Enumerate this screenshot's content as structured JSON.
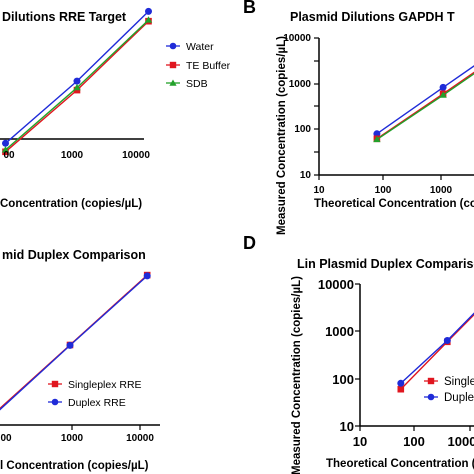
{
  "chart_data": [
    {
      "type": "line",
      "panel_label": "",
      "title": "Dilutions RRE Target",
      "xlabel": "Concentration (copies/µL)",
      "ylabel": "",
      "x_scale": "log",
      "y_scale": "log",
      "xlim": [
        40,
        15000
      ],
      "ylim": [
        10,
        10000
      ],
      "x_ticks": [
        "00",
        "1000",
        "10000"
      ],
      "y_ticks": [],
      "legend": "top-right",
      "series": [
        {
          "name": "Water",
          "color": "#1f2bd8",
          "marker": "circle",
          "x": [
            75,
            750,
            7500
          ],
          "y": [
            80,
            650,
            6800
          ]
        },
        {
          "name": "TE Buffer",
          "color": "#e0161f",
          "marker": "square",
          "x": [
            75,
            750,
            7500
          ],
          "y": [
            60,
            480,
            4900
          ]
        },
        {
          "name": "SDB",
          "color": "#22a12a",
          "marker": "triangle",
          "x": [
            75,
            750,
            7500
          ],
          "y": [
            64,
            520,
            5100
          ]
        }
      ]
    },
    {
      "type": "line",
      "panel_label": "B",
      "title": "Plasmid Dilutions GAPDH T",
      "xlabel": "Theoretical Concentration (copies/µL",
      "ylabel": "Measured Concentration (copies/µL)",
      "x_scale": "log",
      "y_scale": "log",
      "xlim": [
        10,
        2200
      ],
      "ylim": [
        10,
        10000
      ],
      "x_ticks": [
        "10",
        "100",
        "1000"
      ],
      "y_ticks": [
        "10",
        "100",
        "1000",
        "10000"
      ],
      "series": [
        {
          "name": "Water",
          "color": "#1f2bd8",
          "marker": "circle",
          "x": [
            75,
            750,
            7500
          ],
          "y": [
            80,
            830,
            8300
          ]
        },
        {
          "name": "TE Buffer",
          "color": "#e0161f",
          "marker": "square",
          "x": [
            75,
            750,
            7500
          ],
          "y": [
            62,
            600,
            6000
          ]
        },
        {
          "name": "SDB",
          "color": "#22a12a",
          "marker": "triangle",
          "x": [
            75,
            750,
            7500
          ],
          "y": [
            60,
            560,
            5600
          ]
        }
      ]
    },
    {
      "type": "line",
      "panel_label": "",
      "title": "mid Duplex Comparison",
      "xlabel": "l Concentration (copies/µL)",
      "ylabel": "",
      "x_scale": "log",
      "y_scale": "log",
      "xlim": [
        65,
        12000
      ],
      "ylim": [
        40,
        15000
      ],
      "x_ticks": [
        "00",
        "1000",
        "10000"
      ],
      "y_ticks": [],
      "legend": "bottom-right",
      "series": [
        {
          "name": "Singleplex RRE",
          "color": "#e0161f",
          "marker": "square",
          "x": [
            75,
            750,
            7500
          ],
          "y": [
            75,
            750,
            7500
          ]
        },
        {
          "name": "Duplex RRE",
          "color": "#1f2bd8",
          "marker": "circle",
          "x": [
            75,
            750,
            7500
          ],
          "y": [
            72,
            740,
            7300
          ]
        }
      ]
    },
    {
      "type": "line",
      "panel_label": "D",
      "title": "Lin Plasmid Duplex Comparison",
      "xlabel": "Theoretical Concentration (copies",
      "ylabel": "Measured Concentration (copies/µL)",
      "x_scale": "log",
      "y_scale": "log",
      "xlim": [
        10,
        2800
      ],
      "ylim": [
        10,
        10000
      ],
      "x_ticks": [
        "10",
        "100",
        "1000"
      ],
      "y_ticks": [
        "10",
        "100",
        "1000",
        "10000"
      ],
      "legend": "bottom-right",
      "series": [
        {
          "name": "Single",
          "color": "#e0161f",
          "marker": "square",
          "x": [
            75,
            750,
            7500
          ],
          "y": [
            60,
            600,
            6000
          ]
        },
        {
          "name": "Duple",
          "color": "#1f2bd8",
          "marker": "circle",
          "x": [
            75,
            750,
            7500
          ],
          "y": [
            80,
            640,
            6400
          ]
        }
      ]
    }
  ]
}
